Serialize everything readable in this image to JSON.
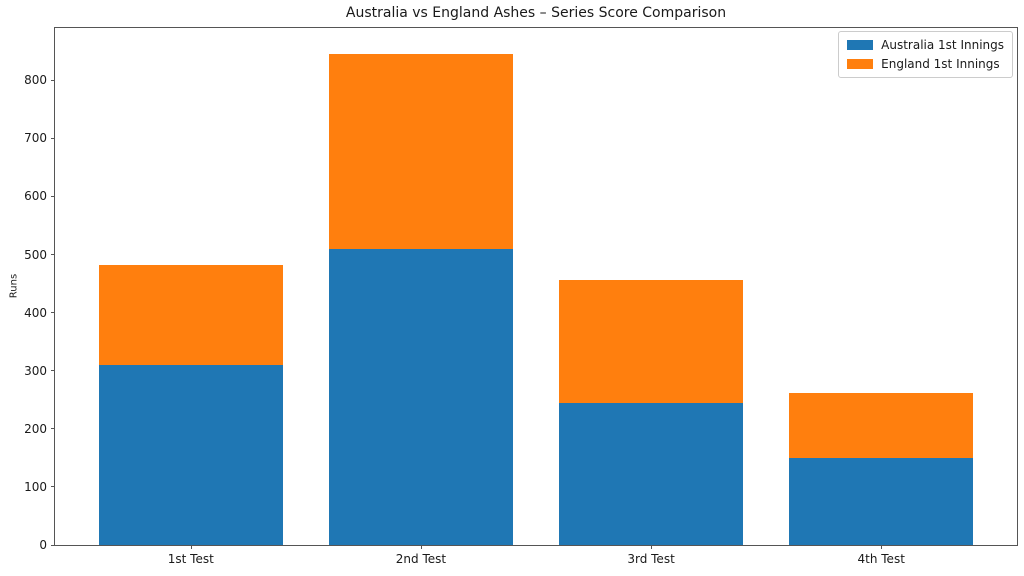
{
  "chart_data": {
    "type": "bar",
    "stacked": true,
    "title": "Australia vs England Ashes – Series Score Comparison",
    "xlabel": "",
    "ylabel": "Runs",
    "categories": [
      "1st Test",
      "2nd Test",
      "3rd Test",
      "4th Test"
    ],
    "series": [
      {
        "name": "Australia 1st Innings",
        "color": "#1f77b4",
        "values": [
          310,
          510,
          245,
          150
        ]
      },
      {
        "name": "England 1st Innings",
        "color": "#ff7f0e",
        "values": [
          172,
          335,
          212,
          112
        ]
      }
    ],
    "ylim": [
      0,
      890
    ],
    "yticks": [
      0,
      100,
      200,
      300,
      400,
      500,
      600,
      700,
      800
    ],
    "xlim": [
      -0.59,
      3.59
    ],
    "bar_width": 0.8,
    "legend_position": "upper right",
    "grid": false,
    "background": "#ffffff",
    "axis_color": "#555555",
    "text_color": "#1a1a1a"
  }
}
